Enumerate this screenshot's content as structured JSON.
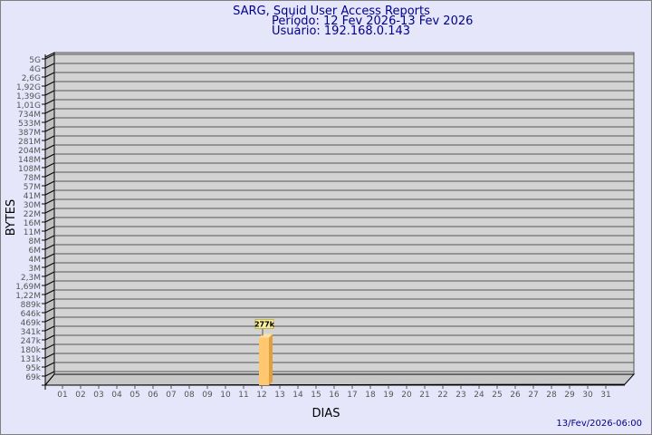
{
  "header": {
    "title": "SARG, Squid User Access Reports",
    "period": "Período: 12 Fev 2026-13 Fev 2026",
    "user": "Usuário: 192.168.0.143"
  },
  "footer": {
    "timestamp": "13/Fev/2026-06:00"
  },
  "colors": {
    "background": "#e6e6fa",
    "plot": "#d3d3d3",
    "bar": "#ffc870",
    "text": "#00008b"
  },
  "chart_data": {
    "type": "bar",
    "xlabel": "DIAS",
    "ylabel": "BYTES",
    "y_scale": "log",
    "grid": true,
    "categories": [
      "01",
      "02",
      "03",
      "04",
      "05",
      "06",
      "07",
      "08",
      "09",
      "10",
      "11",
      "12",
      "13",
      "14",
      "15",
      "16",
      "17",
      "18",
      "19",
      "20",
      "21",
      "22",
      "23",
      "24",
      "25",
      "26",
      "27",
      "28",
      "29",
      "30",
      "31"
    ],
    "y_tick_labels": [
      "5G",
      "4G",
      "2,6G",
      "1,92G",
      "1,39G",
      "1,01G",
      "734M",
      "533M",
      "387M",
      "281M",
      "204M",
      "148M",
      "108M",
      "78M",
      "57M",
      "41M",
      "30M",
      "22M",
      "16M",
      "11M",
      "8M",
      "6M",
      "4M",
      "3M",
      "2,3M",
      "1,69M",
      "1,22M",
      "889k",
      "646k",
      "469k",
      "341k",
      "247k",
      "180k",
      "131k",
      "95k",
      "69k"
    ],
    "points": [
      {
        "x": "12",
        "value": 277000,
        "label": "277k"
      }
    ]
  }
}
